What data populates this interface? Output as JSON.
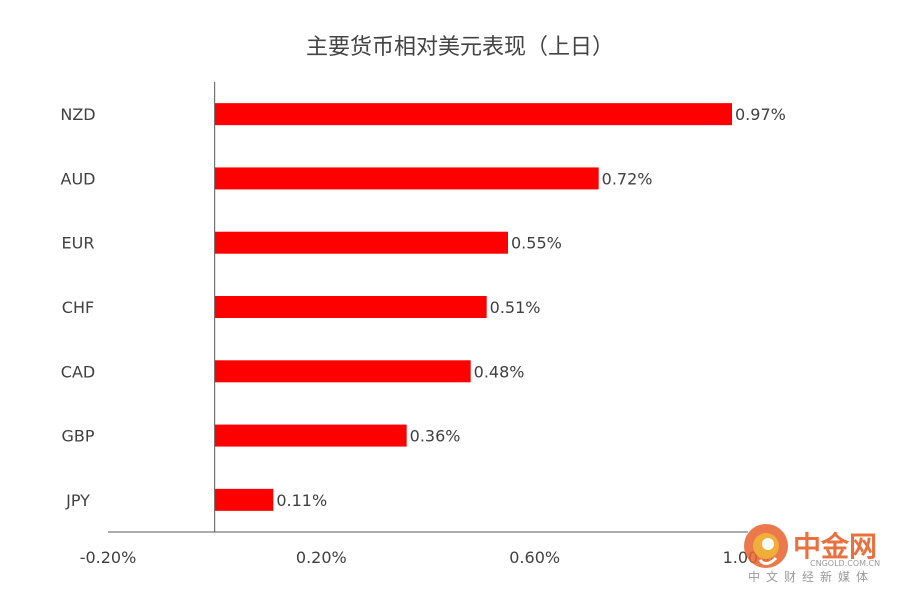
{
  "chart_data": {
    "type": "bar",
    "orientation": "horizontal",
    "title": "主要货币相对美元表现（上日）",
    "categories": [
      "NZD",
      "AUD",
      "EUR",
      "CHF",
      "CAD",
      "GBP",
      "JPY"
    ],
    "values": [
      0.97,
      0.72,
      0.55,
      0.51,
      0.48,
      0.36,
      0.11
    ],
    "data_labels": [
      "0.97%",
      "0.72%",
      "0.55%",
      "0.51%",
      "0.48%",
      "0.36%",
      "0.11%"
    ],
    "xlim": [
      -0.2,
      1.0
    ],
    "x_ticks": [
      -0.2,
      0.2,
      0.6,
      1.0
    ],
    "x_tick_labels": [
      "-0.20%",
      "0.20%",
      "0.60%",
      "1.00%"
    ],
    "xlabel": "",
    "ylabel": "",
    "grid": false,
    "legend": "none",
    "bar_color": "#FF0000"
  },
  "watermark": {
    "name": "中金网",
    "url": "CNGOLD.COM.CN",
    "tagline": "中文财经新媒体",
    "icon": "cngold-logo-icon",
    "colors": {
      "primary": "#E8622B",
      "secondary": "#F2B43A"
    }
  }
}
